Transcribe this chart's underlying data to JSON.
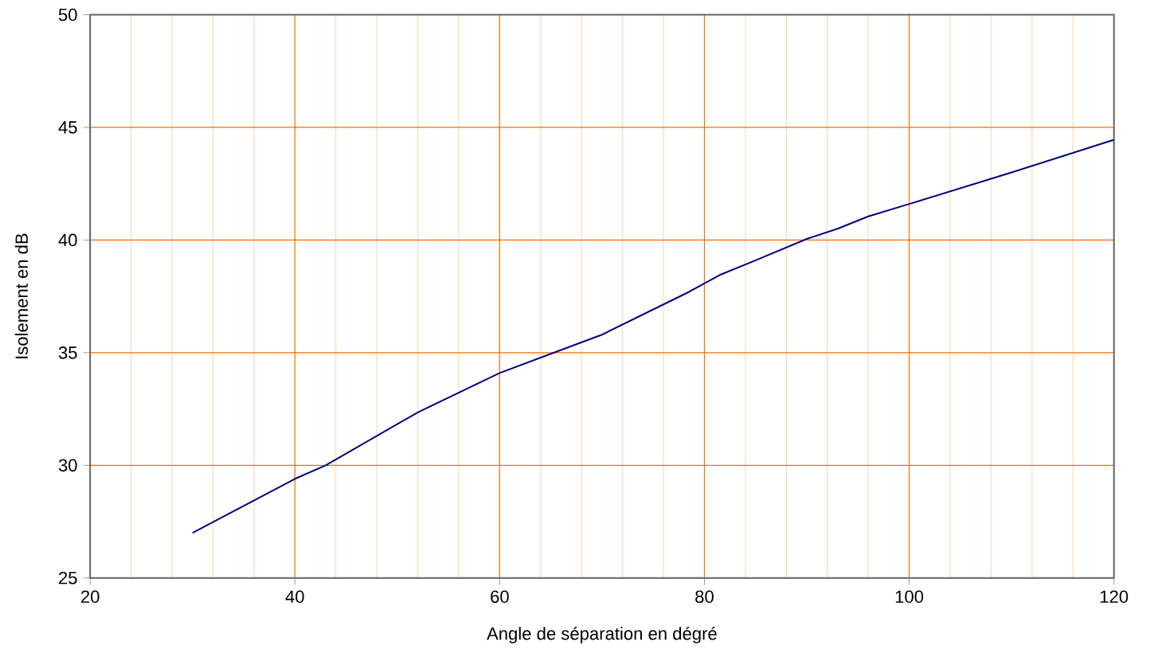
{
  "chart_data": {
    "type": "line",
    "xlabel": "Angle de séparation en dégré",
    "ylabel": "Isolement en dB",
    "x": [
      30,
      40,
      43,
      52,
      60,
      65,
      70,
      78.5,
      81.5,
      85,
      90,
      93,
      96,
      100,
      110,
      120
    ],
    "series": [
      {
        "color": "#000080",
        "values": [
          27.0,
          29.4,
          30.0,
          32.35,
          34.1,
          34.95,
          35.8,
          37.7,
          38.45,
          39.1,
          40.05,
          40.5,
          41.05,
          41.6,
          43.0,
          44.45
        ]
      }
    ],
    "xlim": [
      20,
      120
    ],
    "ylim": [
      25,
      50
    ],
    "xticks": [
      20,
      {
        "value": 24,
        "label": null
      },
      {
        "value": 28,
        "label": null
      },
      {
        "value": 32,
        "label": null
      },
      {
        "value": 36,
        "label": null
      },
      40,
      {
        "value": 44,
        "label": null
      },
      {
        "value": 48,
        "label": null
      },
      {
        "value": 52,
        "label": null
      },
      {
        "value": 56,
        "label": null
      },
      60,
      {
        "value": 64,
        "label": null
      },
      {
        "value": 68,
        "label": null
      },
      {
        "value": 72,
        "label": null
      },
      {
        "value": 76,
        "label": null
      },
      80,
      {
        "value": 84,
        "label": null
      },
      {
        "value": 88,
        "label": null
      },
      {
        "value": 92,
        "label": null
      },
      {
        "value": 96,
        "label": null
      },
      100,
      {
        "value": 104,
        "label": null
      },
      {
        "value": 108,
        "label": null
      },
      {
        "value": 112,
        "label": null
      },
      {
        "value": 116,
        "label": null
      },
      120
    ],
    "yticks": [
      25,
      30,
      35,
      40,
      45,
      50
    ],
    "grid": true,
    "marker": "none",
    "line_style": "solid"
  }
}
